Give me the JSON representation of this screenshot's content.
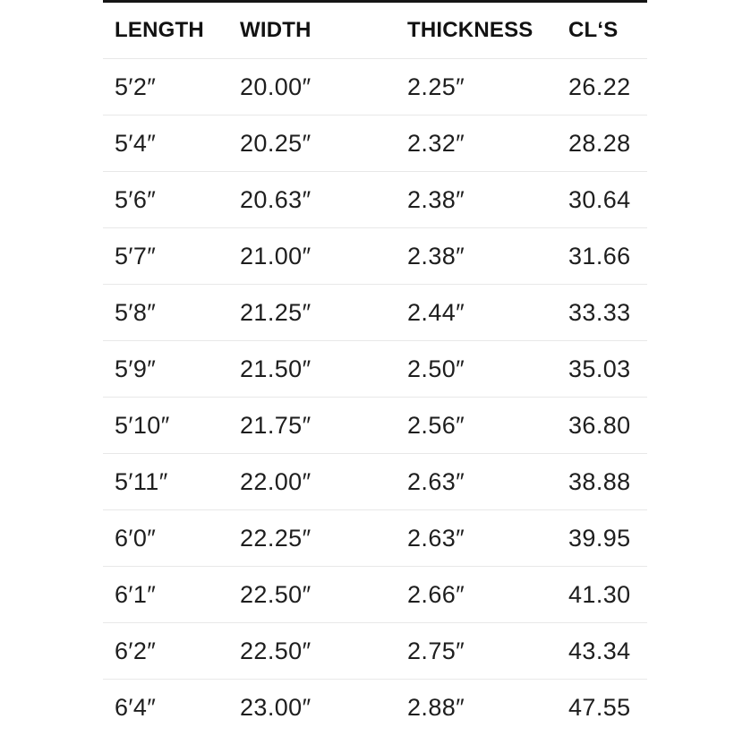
{
  "chart_data": {
    "type": "table",
    "title": "",
    "columns": [
      {
        "key": "length",
        "label": "LENGTH"
      },
      {
        "key": "width",
        "label": "WIDTH"
      },
      {
        "key": "thickness",
        "label": "THICKNESS"
      },
      {
        "key": "cls",
        "label": "CL‘S"
      }
    ],
    "rows": [
      {
        "length": "5′2″",
        "width": "20.00″",
        "thickness": "2.25″",
        "cls": "26.22"
      },
      {
        "length": "5′4″",
        "width": "20.25″",
        "thickness": "2.32″",
        "cls": "28.28"
      },
      {
        "length": "5′6″",
        "width": "20.63″",
        "thickness": "2.38″",
        "cls": "30.64"
      },
      {
        "length": "5′7″",
        "width": "21.00″",
        "thickness": "2.38″",
        "cls": "31.66"
      },
      {
        "length": "5′8″",
        "width": "21.25″",
        "thickness": "2.44″",
        "cls": "33.33"
      },
      {
        "length": "5′9″",
        "width": "21.50″",
        "thickness": "2.50″",
        "cls": "35.03"
      },
      {
        "length": "5′10″",
        "width": "21.75″",
        "thickness": "2.56″",
        "cls": "36.80"
      },
      {
        "length": "5′11″",
        "width": "22.00″",
        "thickness": "2.63″",
        "cls": "38.88"
      },
      {
        "length": "6′0″",
        "width": "22.25″",
        "thickness": "2.63″",
        "cls": "39.95"
      },
      {
        "length": "6′1″",
        "width": "22.50″",
        "thickness": "2.66″",
        "cls": "41.30"
      },
      {
        "length": "6′2″",
        "width": "22.50″",
        "thickness": "2.75″",
        "cls": "43.34"
      },
      {
        "length": "6′4″",
        "width": "23.00″",
        "thickness": "2.88″",
        "cls": "47.55"
      }
    ]
  },
  "colors": {
    "top_border": "#151515",
    "divider": "#e8e8e8",
    "header_text": "#121212",
    "body_text": "#1e1e1e",
    "background": "#ffffff"
  }
}
